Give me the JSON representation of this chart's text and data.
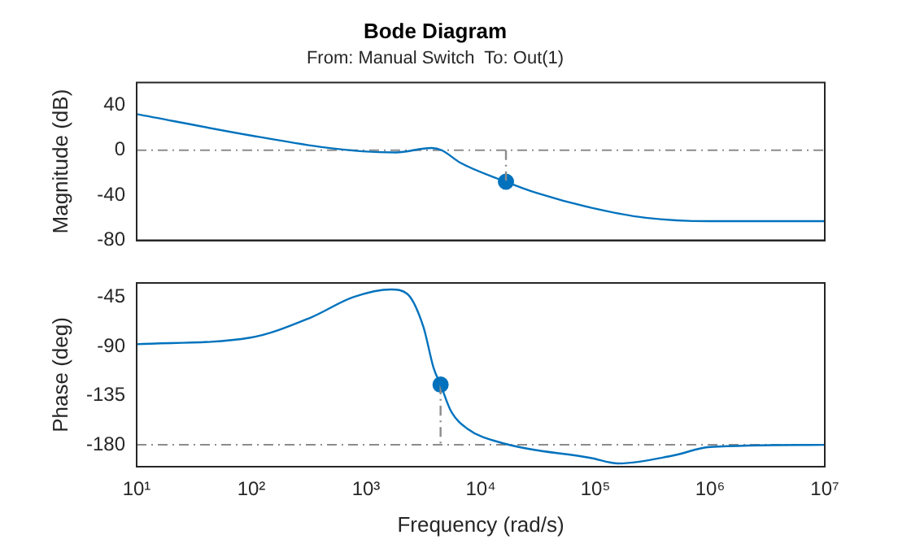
{
  "chart_data": [
    {
      "type": "line",
      "title": "Bode Diagram",
      "subtitle": "From: Manual Switch  To: Out(1)",
      "ylabel": "Magnitude (dB)",
      "log": "x",
      "xlim": [
        10,
        10000000
      ],
      "xticks": [
        {
          "value": 10,
          "label": null
        },
        {
          "value": 100,
          "label": null
        },
        {
          "value": 1000,
          "label": null
        },
        {
          "value": 10000,
          "label": null
        },
        {
          "value": 100000,
          "label": null
        },
        {
          "value": 1000000,
          "label": null
        },
        {
          "value": 10000000,
          "label": null
        }
      ],
      "ylim": [
        -80,
        60
      ],
      "yticks": [
        -80,
        -40,
        0,
        40
      ],
      "tick_labels": "y",
      "grid": false,
      "legend": false,
      "series": [
        {
          "color": "#0072bd",
          "x": [
            10,
            100,
            398,
            933,
            1820,
            3715,
            4571,
            6607,
            16600,
            30900,
            91200,
            275000,
            1000000,
            10000000
          ],
          "values": [
            32,
            13,
            3,
            -1,
            -2,
            2,
            0,
            -11,
            -28,
            -38,
            -51,
            -60,
            -63,
            -63
          ]
        },
        {
          "color": "#8c8c8c",
          "line_style": "dashed",
          "x": [
            16600,
            16600
          ],
          "values": [
            0,
            -28
          ]
        },
        {
          "type": "scatter",
          "color": "#0072bd",
          "marker": "circle",
          "x": [
            16600
          ],
          "values": [
            -28
          ]
        }
      ],
      "ref_lines": [
        {
          "axis": "y",
          "value": 0,
          "color": "#8c8c8c",
          "line_style": "dashed"
        }
      ]
    },
    {
      "type": "line",
      "xlabel": "Frequency (rad/s)",
      "ylabel": "Phase (deg)",
      "log": "x",
      "xlim": [
        10,
        10000000
      ],
      "xticks": [
        {
          "value": 10,
          "label": "10¹"
        },
        {
          "value": 100,
          "label": "10²"
        },
        {
          "value": 1000,
          "label": "10³"
        },
        {
          "value": 10000,
          "label": "10⁴"
        },
        {
          "value": 100000,
          "label": "10⁵"
        },
        {
          "value": 1000000,
          "label": "10⁶"
        },
        {
          "value": 10000000,
          "label": "10⁷"
        }
      ],
      "ylim": [
        -200,
        -32
      ],
      "yticks": [
        -180,
        -135,
        -90,
        -45
      ],
      "grid": false,
      "legend": false,
      "series": [
        {
          "color": "#0072bd",
          "x": [
            10,
            98,
            324,
            776,
            1660,
            2290,
            3162,
            3890,
            4467,
            5495,
            7586,
            16220,
            91200,
            158500,
            467700,
            1000000,
            10000000
          ],
          "values": [
            -88,
            -82,
            -64,
            -45,
            -38,
            -42,
            -72,
            -110,
            -125,
            -149,
            -165,
            -179,
            -192,
            -197,
            -190,
            -182,
            -180
          ]
        },
        {
          "color": "#8c8c8c",
          "line_style": "dashed",
          "x": [
            4467,
            4467
          ],
          "values": [
            -125,
            -180
          ]
        },
        {
          "type": "scatter",
          "color": "#0072bd",
          "marker": "circle",
          "x": [
            4467
          ],
          "values": [
            -125
          ]
        }
      ],
      "ref_lines": [
        {
          "axis": "y",
          "value": -180,
          "color": "#8c8c8c",
          "line_style": "dashed"
        }
      ]
    }
  ]
}
